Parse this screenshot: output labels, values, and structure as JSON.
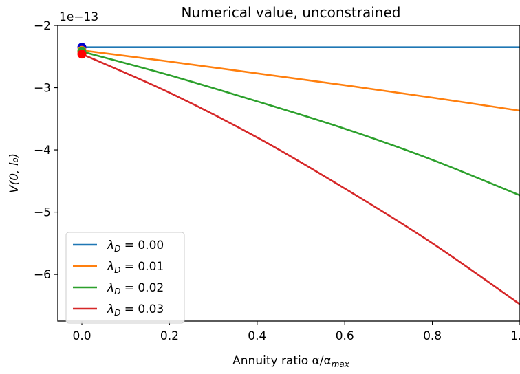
{
  "chart_data": {
    "type": "line",
    "title": "Numerical value, unconstrained",
    "xlabel": "Annuity ratio α/α",
    "xlabel_sub": "max",
    "ylabel": "V(0, l₀)",
    "offset_text": "1e−13",
    "xlim": [
      -0.055,
      1.0
    ],
    "ylim": [
      -6.75,
      -2.0
    ],
    "x_ticks": [
      0.0,
      0.2,
      0.4,
      0.6,
      0.8,
      1.0
    ],
    "x_tick_labels": [
      "0.0",
      "0.2",
      "0.4",
      "0.6",
      "0.8",
      "1.0"
    ],
    "y_ticks": [
      -2,
      -3,
      -4,
      -5,
      -6
    ],
    "y_tick_labels": [
      "−2",
      "−3",
      "−4",
      "−5",
      "−6"
    ],
    "legend_position": "lower-left",
    "series": [
      {
        "name": "λD = 0.00",
        "label_lambda": "λ",
        "label_sub": "D",
        "label_value": " = 0.00",
        "color": "#1f77b4",
        "x": [
          0,
          0.2,
          0.4,
          0.6,
          0.8,
          1.0
        ],
        "y": [
          -2.35,
          -2.35,
          -2.35,
          -2.35,
          -2.35,
          -2.35
        ]
      },
      {
        "name": "λD = 0.01",
        "label_lambda": "λ",
        "label_sub": "D",
        "label_value": " = 0.01",
        "color": "#ff7f0e",
        "x": [
          0,
          0.2,
          0.4,
          0.6,
          0.8,
          1.0
        ],
        "y": [
          -2.4,
          -2.58,
          -2.77,
          -2.96,
          -3.16,
          -3.37
        ]
      },
      {
        "name": "λD = 0.02",
        "label_lambda": "λ",
        "label_sub": "D",
        "label_value": " = 0.02",
        "color": "#2ca02c",
        "x": [
          0,
          0.2,
          0.4,
          0.6,
          0.8,
          1.0
        ],
        "y": [
          -2.42,
          -2.8,
          -3.22,
          -3.66,
          -4.16,
          -4.73
        ]
      },
      {
        "name": "λD = 0.03",
        "label_lambda": "λ",
        "label_sub": "D",
        "label_value": " = 0.03",
        "color": "#d62728",
        "x": [
          0,
          0.2,
          0.4,
          0.6,
          0.8,
          1.0
        ],
        "y": [
          -2.46,
          -3.08,
          -3.8,
          -4.62,
          -5.5,
          -6.48
        ]
      }
    ],
    "start_markers": [
      {
        "x": 0,
        "y": -2.35,
        "color": "#0000cc"
      },
      {
        "x": 0,
        "y": -2.4,
        "color": "#ff7f0e"
      },
      {
        "x": 0,
        "y": -2.42,
        "color": "#2ca02c"
      },
      {
        "x": 0,
        "y": -2.46,
        "color": "#ff0000"
      }
    ]
  }
}
